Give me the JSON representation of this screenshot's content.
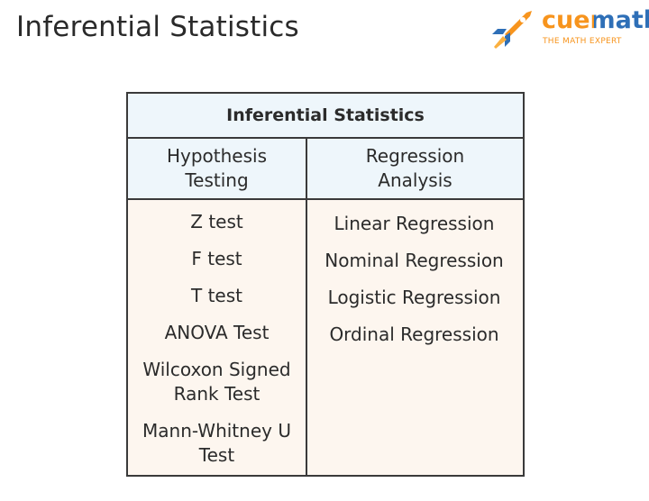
{
  "header": {
    "title": "Inferential Statistics",
    "logo": {
      "name": "cuemath",
      "tagline": "THE MATH EXPERT"
    }
  },
  "table": {
    "title": "Inferential Statistics",
    "columns": [
      {
        "heading": "Hypothesis Testing",
        "items": [
          "Z test",
          "F test",
          "T test",
          "ANOVA Test",
          "Wilcoxon Signed Rank Test",
          "Mann-Whitney U Test"
        ]
      },
      {
        "heading": "Regression Analysis",
        "items": [
          "Linear Regression",
          "Nominal Regression",
          "Logistic Regression",
          "Ordinal Regression"
        ]
      }
    ]
  }
}
